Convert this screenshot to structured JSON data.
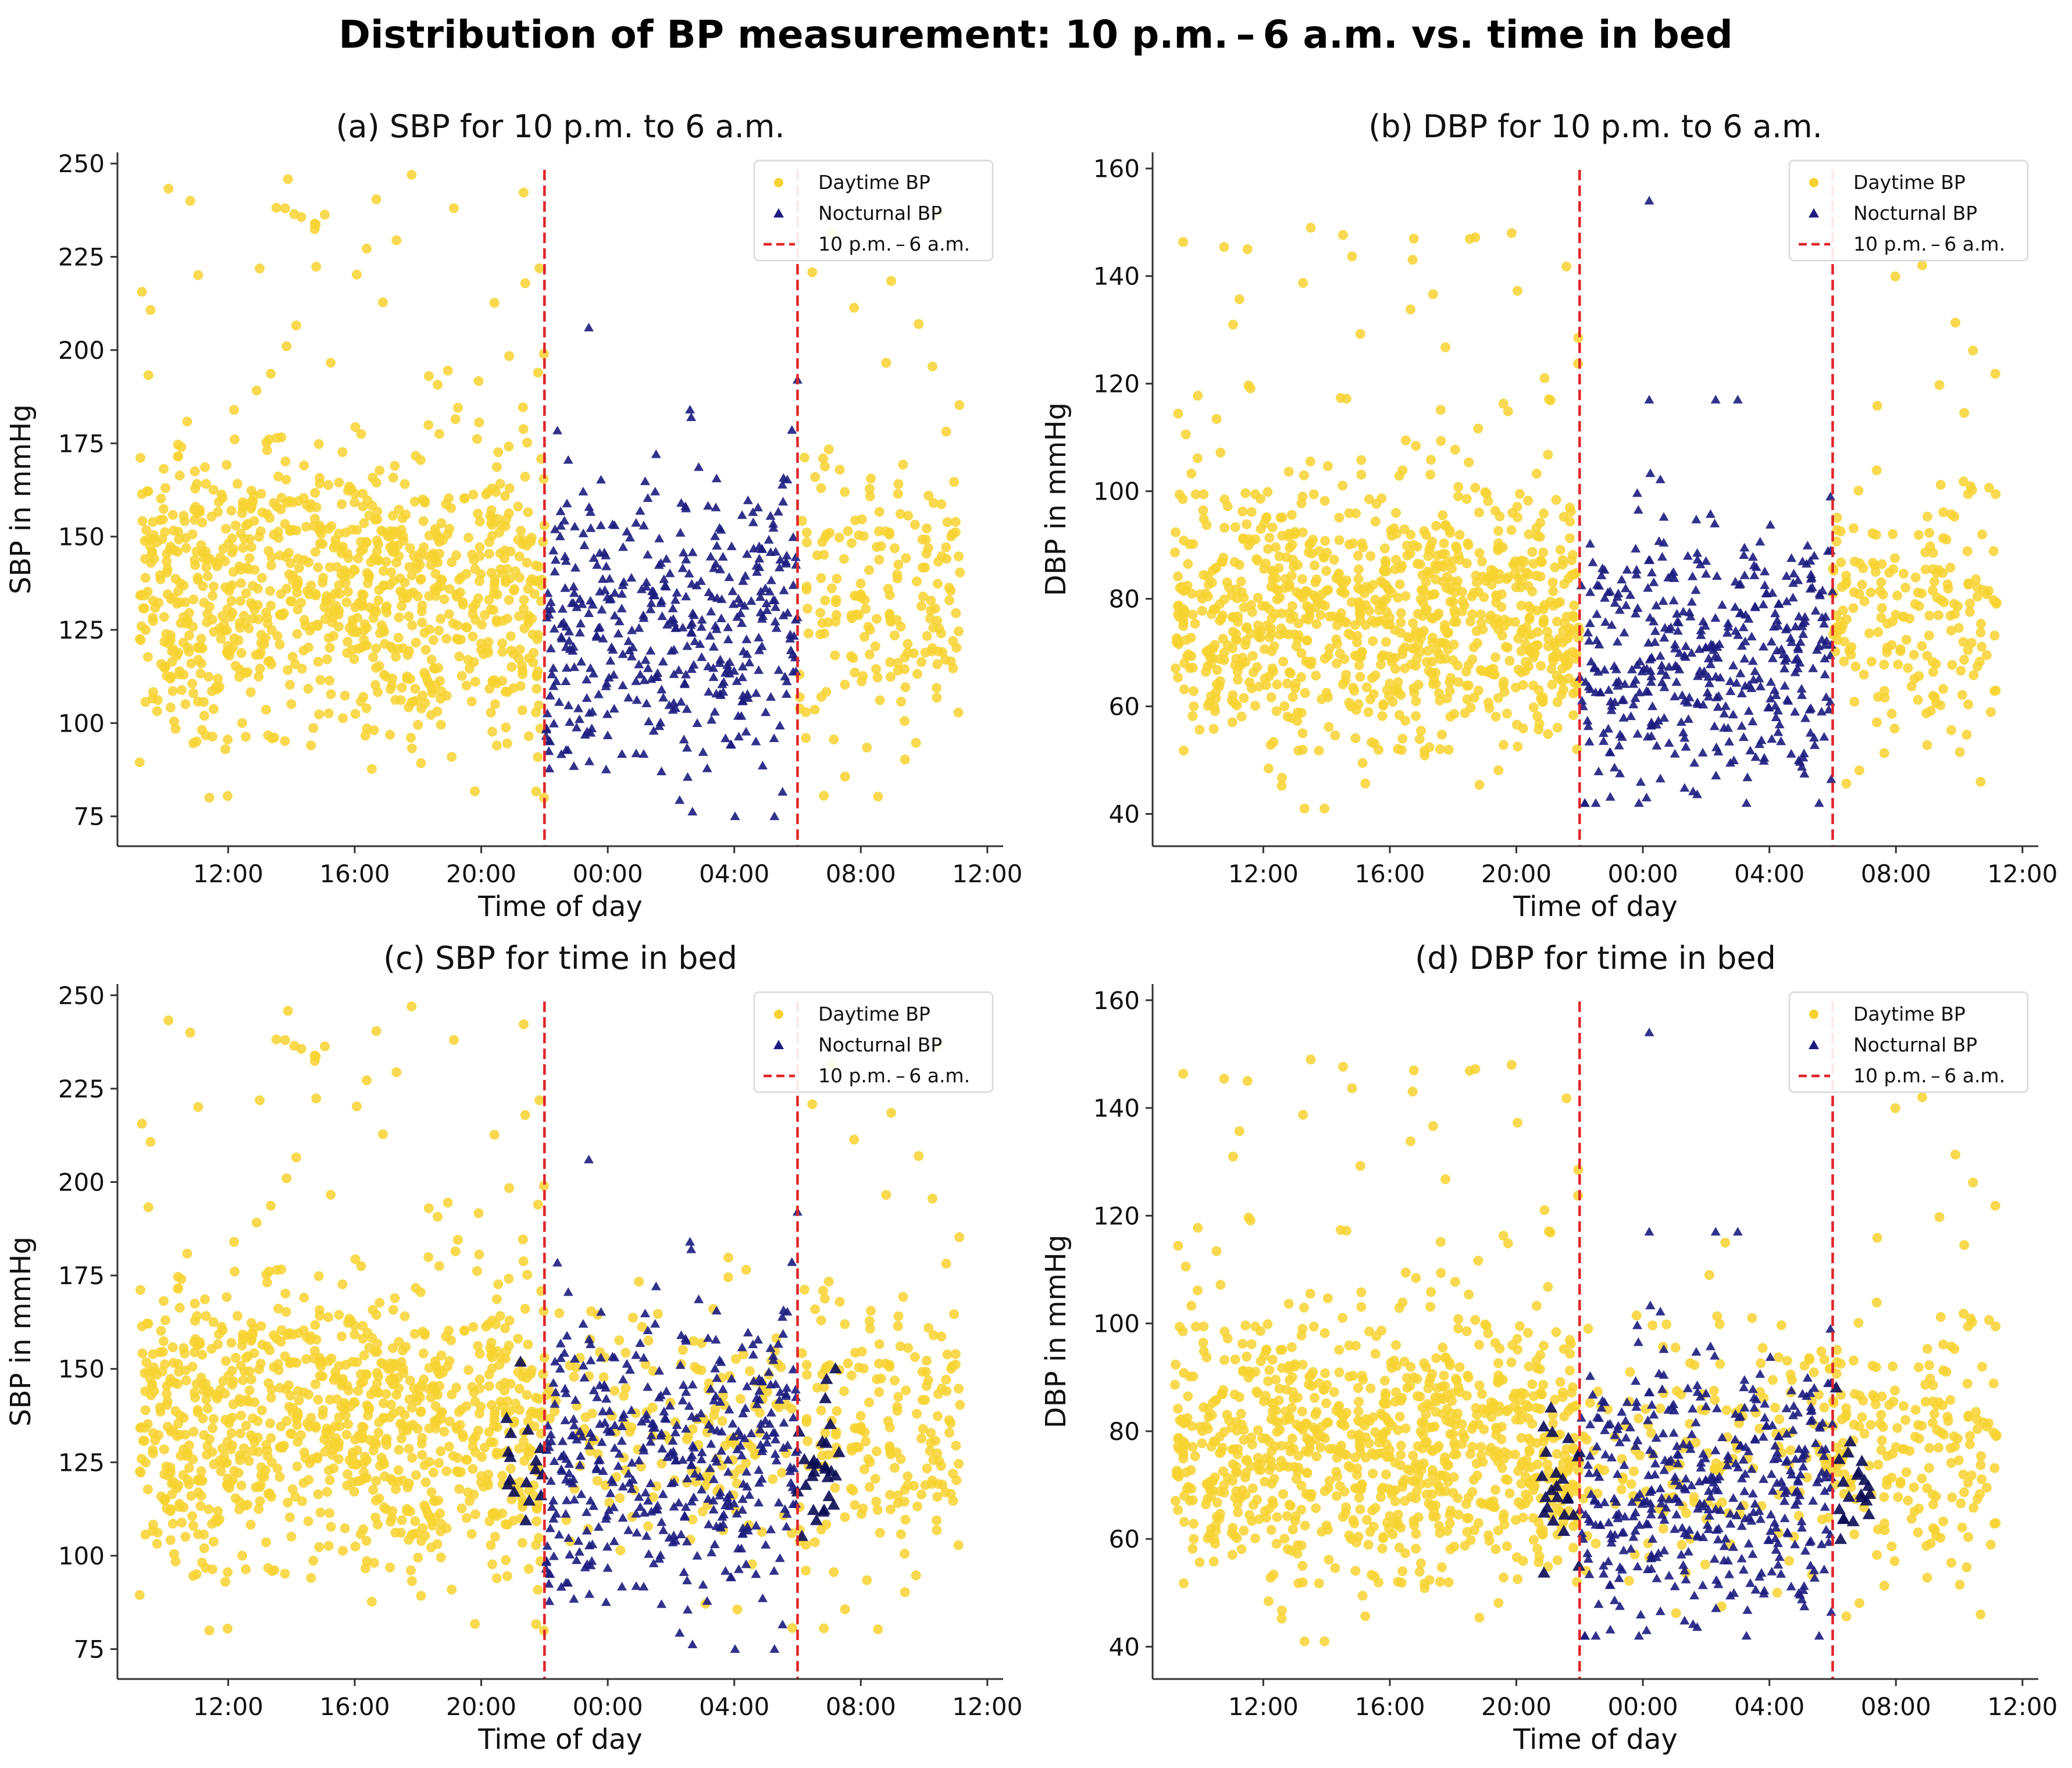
{
  "figure": {
    "title": "Distribution of BP measurement: 10 p.m. – 6 a.m. vs. time in bed"
  },
  "colors": {
    "daytime": "#f7d230",
    "nocturnal": "#1c1c80",
    "nocturnal_dark": "#0b0b55",
    "cutoff_line": "#e0262a",
    "axis": "#333333"
  },
  "chart_data": [
    {
      "type": "scatter",
      "title": "(a) SBP for 10 p.m. to 6 a.m.",
      "xlabel": "Time of day",
      "ylabel": "SBP in mmHg",
      "x_unit": "hours since 12:00 (day 1)",
      "xlim": [
        -3.5,
        24.5
      ],
      "ylim": [
        67,
        253
      ],
      "x_ticks": [
        0,
        4,
        8,
        12,
        16,
        20,
        24
      ],
      "x_tick_labels": [
        "12:00",
        "16:00",
        "20:00",
        "00:00",
        "04:00",
        "08:00",
        "12:00"
      ],
      "y_ticks": [
        75,
        100,
        125,
        150,
        175,
        200,
        225,
        250
      ],
      "y_tick_labels": [
        "75",
        "100",
        "125",
        "150",
        "175",
        "200",
        "225",
        "250"
      ],
      "cutoff_lines": [
        10,
        18
      ],
      "legend": {
        "position": "top-right",
        "entries": [
          "Daytime BP",
          "Nocturnal BP",
          "10 p.m. – 6 a.m."
        ]
      },
      "series": [
        {
          "name": "Daytime BP",
          "marker": "circle",
          "generator": {
            "mean": 134,
            "sd": 20,
            "outlier_min": 80,
            "outlier_max": 247,
            "count": 1150,
            "seed": 11
          }
        },
        {
          "name": "Nocturnal BP",
          "marker": "triangle",
          "generator": {
            "mean": 124,
            "sd": 20,
            "count": 420,
            "seed": 23
          }
        }
      ],
      "notable_points": [
        {
          "series": "Nocturnal BP",
          "x": 11.4,
          "y": 206
        },
        {
          "series": "Nocturnal BP",
          "x": 14.6,
          "y": 184
        },
        {
          "series": "Nocturnal BP",
          "x": 18.0,
          "y": 192
        },
        {
          "series": "Daytime BP",
          "x": -1.2,
          "y": 240
        },
        {
          "series": "Daytime BP",
          "x": 5.8,
          "y": 247
        },
        {
          "series": "Daytime BP",
          "x": 1.8,
          "y": 238
        }
      ],
      "assignment": "by clock window 22:00–06:00"
    },
    {
      "type": "scatter",
      "title": "(b) DBP for 10 p.m. to 6 a.m.",
      "xlabel": "Time of day",
      "ylabel": "DBP in mmHg",
      "x_unit": "hours since 12:00 (day 1)",
      "xlim": [
        -3.5,
        24.5
      ],
      "ylim": [
        34,
        163
      ],
      "x_ticks": [
        0,
        4,
        8,
        12,
        16,
        20,
        24
      ],
      "x_tick_labels": [
        "12:00",
        "16:00",
        "20:00",
        "00:00",
        "04:00",
        "08:00",
        "12:00"
      ],
      "y_ticks": [
        40,
        60,
        80,
        100,
        120,
        140,
        160
      ],
      "y_tick_labels": [
        "40",
        "60",
        "80",
        "100",
        "120",
        "140",
        "160"
      ],
      "cutoff_lines": [
        10,
        18
      ],
      "legend": {
        "position": "top-right",
        "entries": [
          "Daytime BP",
          "Nocturnal BP",
          "10 p.m. – 6 a.m."
        ]
      },
      "series": [
        {
          "name": "Daytime BP",
          "marker": "circle",
          "generator": {
            "mean": 77,
            "sd": 13,
            "outlier_min": 41,
            "outlier_max": 149,
            "count": 1150,
            "seed": 37
          }
        },
        {
          "name": "Nocturnal BP",
          "marker": "triangle",
          "generator": {
            "mean": 69,
            "sd": 13,
            "count": 420,
            "seed": 41
          }
        }
      ],
      "notable_points": [
        {
          "series": "Nocturnal BP",
          "x": 12.2,
          "y": 154
        },
        {
          "series": "Nocturnal BP",
          "x": 12.2,
          "y": 117
        },
        {
          "series": "Nocturnal BP",
          "x": 14.3,
          "y": 117
        },
        {
          "series": "Nocturnal BP",
          "x": 15.0,
          "y": 117
        },
        {
          "series": "Daytime BP",
          "x": 1.5,
          "y": 149
        },
        {
          "series": "Daytime BP",
          "x": -0.5,
          "y": 145
        }
      ],
      "assignment": "by clock window 22:00–06:00"
    },
    {
      "type": "scatter",
      "title": "(c) SBP for time in bed",
      "xlabel": "Time of day",
      "ylabel": "SBP in mmHg",
      "x_unit": "hours since 12:00 (day 1)",
      "xlim": [
        -3.5,
        24.5
      ],
      "ylim": [
        67,
        253
      ],
      "x_ticks": [
        0,
        4,
        8,
        12,
        16,
        20,
        24
      ],
      "x_tick_labels": [
        "12:00",
        "16:00",
        "20:00",
        "00:00",
        "04:00",
        "08:00",
        "12:00"
      ],
      "y_ticks": [
        75,
        100,
        125,
        150,
        175,
        200,
        225,
        250
      ],
      "y_tick_labels": [
        "75",
        "100",
        "125",
        "150",
        "175",
        "200",
        "225",
        "250"
      ],
      "cutoff_lines": [
        10,
        18
      ],
      "legend": {
        "position": "top-right",
        "entries": [
          "Daytime BP",
          "Nocturnal BP",
          "10 p.m. – 6 a.m."
        ]
      },
      "series": [
        {
          "name": "Daytime BP",
          "marker": "circle",
          "generator": {
            "mean": 134,
            "sd": 20,
            "outlier_min": 80,
            "outlier_max": 247,
            "count": 1150,
            "seed": 11
          }
        },
        {
          "name": "Nocturnal BP",
          "marker": "triangle",
          "generator": {
            "mean": 124,
            "sd": 20,
            "count": 420,
            "seed": 23
          }
        }
      ],
      "notable_points": [
        {
          "series": "Nocturnal BP",
          "x": 11.4,
          "y": 206
        },
        {
          "series": "Nocturnal BP",
          "x": 14.6,
          "y": 184
        },
        {
          "series": "Nocturnal BP",
          "x": 18.0,
          "y": 192
        },
        {
          "series": "Daytime BP",
          "x": -1.2,
          "y": 240
        },
        {
          "series": "Daytime BP",
          "x": 5.8,
          "y": 247
        },
        {
          "series": "Daytime BP",
          "x": 1.8,
          "y": 238
        }
      ],
      "assignment": "by individual time in bed (overlapping the 22:00–06:00 window)"
    },
    {
      "type": "scatter",
      "title": "(d) DBP for time in bed",
      "xlabel": "Time of day",
      "ylabel": "DBP in mmHg",
      "x_unit": "hours since 12:00 (day 1)",
      "xlim": [
        -3.5,
        24.5
      ],
      "ylim": [
        34,
        163
      ],
      "x_ticks": [
        0,
        4,
        8,
        12,
        16,
        20,
        24
      ],
      "x_tick_labels": [
        "12:00",
        "16:00",
        "20:00",
        "00:00",
        "04:00",
        "08:00",
        "12:00"
      ],
      "y_ticks": [
        40,
        60,
        80,
        100,
        120,
        140,
        160
      ],
      "y_tick_labels": [
        "40",
        "60",
        "80",
        "100",
        "120",
        "140",
        "160"
      ],
      "cutoff_lines": [
        10,
        18
      ],
      "legend": {
        "position": "top-right",
        "entries": [
          "Daytime BP",
          "Nocturnal BP",
          "10 p.m. – 6 a.m."
        ]
      },
      "series": [
        {
          "name": "Daytime BP",
          "marker": "circle",
          "generator": {
            "mean": 77,
            "sd": 13,
            "outlier_min": 41,
            "outlier_max": 149,
            "count": 1150,
            "seed": 37
          }
        },
        {
          "name": "Nocturnal BP",
          "marker": "triangle",
          "generator": {
            "mean": 69,
            "sd": 13,
            "count": 420,
            "seed": 41
          }
        }
      ],
      "notable_points": [
        {
          "series": "Nocturnal BP",
          "x": 12.2,
          "y": 154
        },
        {
          "series": "Nocturnal BP",
          "x": 12.2,
          "y": 117
        },
        {
          "series": "Nocturnal BP",
          "x": 14.3,
          "y": 117
        },
        {
          "series": "Nocturnal BP",
          "x": 15.0,
          "y": 117
        },
        {
          "series": "Daytime BP",
          "x": 1.5,
          "y": 149
        },
        {
          "series": "Daytime BP",
          "x": -0.5,
          "y": 145
        }
      ],
      "assignment": "by individual time in bed (overlapping the 22:00–06:00 window)"
    }
  ]
}
